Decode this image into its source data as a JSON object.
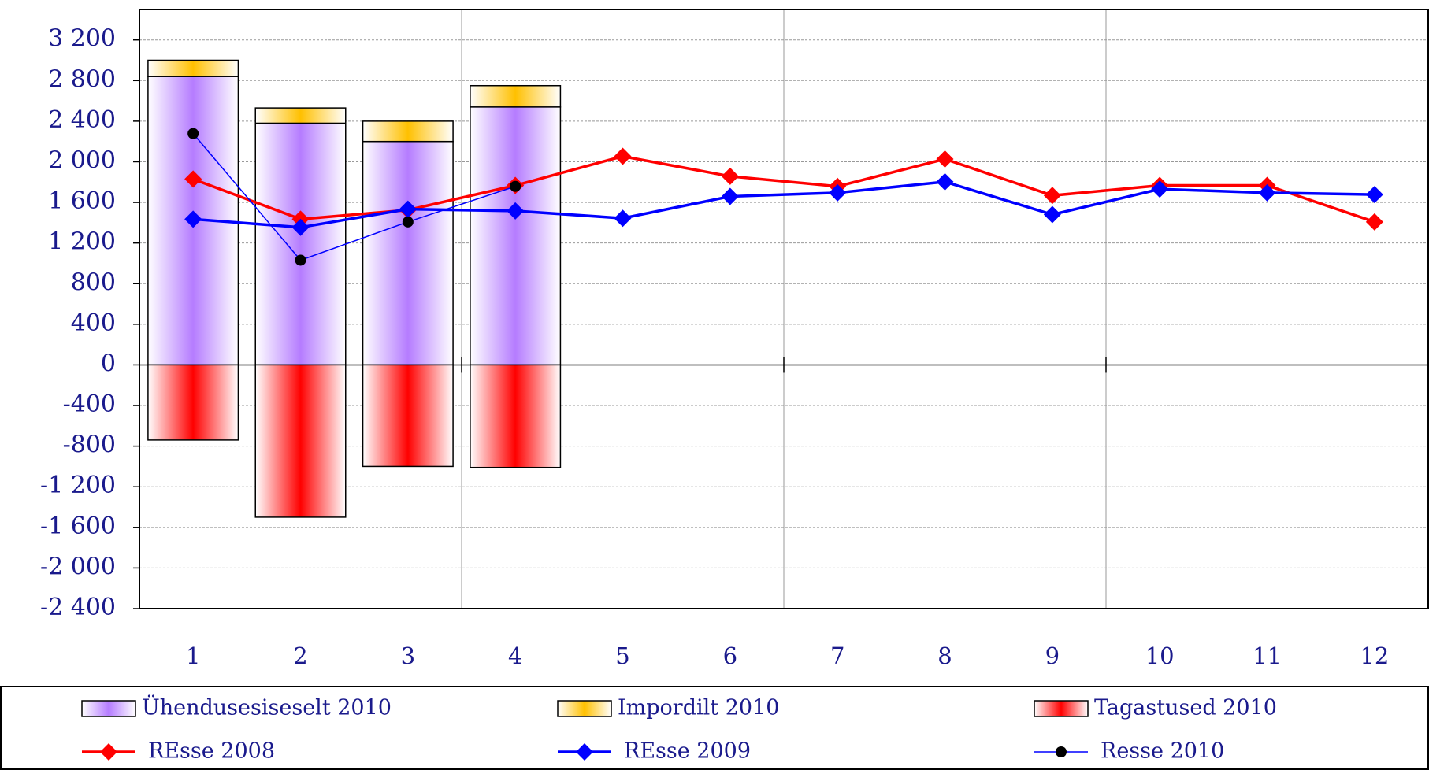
{
  "chart_data": {
    "type": "combo",
    "categories": [
      "1",
      "2",
      "3",
      "4",
      "5",
      "6",
      "7",
      "8",
      "9",
      "10",
      "11",
      "12"
    ],
    "ylim": [
      -2400,
      3500
    ],
    "yticks": [
      {
        "value": -2400,
        "label": "-2 400"
      },
      {
        "value": -2000,
        "label": "-2 000"
      },
      {
        "value": -1600,
        "label": "-1 600"
      },
      {
        "value": -1200,
        "label": "-1 200"
      },
      -800,
      -400,
      0,
      400,
      800,
      {
        "value": 1200,
        "label": "1 200"
      },
      {
        "value": 1600,
        "label": "1 600"
      },
      {
        "value": 2000,
        "label": "2 000"
      },
      {
        "value": 2400,
        "label": "2 400"
      },
      {
        "value": 2800,
        "label": "2 800"
      },
      {
        "value": 3200,
        "label": "3 200"
      }
    ],
    "grid": true,
    "series": [
      {
        "name": "Ühendusesiseselt 2010",
        "type": "bar",
        "color": "#b57cff",
        "values": [
          2840,
          2380,
          2200,
          2540,
          null,
          null,
          null,
          null,
          null,
          null,
          null,
          null
        ]
      },
      {
        "name": "Impordilt 2010",
        "type": "bar",
        "color": "#ffc000",
        "values": [
          160,
          150,
          200,
          210,
          null,
          null,
          null,
          null,
          null,
          null,
          null,
          null
        ]
      },
      {
        "name": "Tagastused 2010",
        "type": "bar",
        "color": "#ff0000",
        "values": [
          -740,
          -1500,
          -1000,
          -1010,
          null,
          null,
          null,
          null,
          null,
          null,
          null,
          null
        ]
      },
      {
        "name": "REsse 2008",
        "type": "line",
        "marker": "diamond",
        "color": "#ff0000",
        "values": [
          1830,
          1435,
          1525,
          1767,
          2054,
          1857,
          1758,
          2027,
          1668,
          1767,
          1767,
          1408
        ]
      },
      {
        "name": "REsse 2009",
        "type": "line",
        "marker": "diamond",
        "color": "#0000ff",
        "values": [
          1435,
          1354,
          1534,
          1516,
          1444,
          1659,
          1695,
          1803,
          1480,
          1731,
          1695,
          1677
        ]
      },
      {
        "name": "Resse 2010",
        "type": "line",
        "marker": "circle",
        "color": "#0000ff",
        "values": [
          2278,
          1031,
          1408,
          1758,
          null,
          null,
          null,
          null,
          null,
          null,
          null,
          null
        ]
      }
    ]
  }
}
